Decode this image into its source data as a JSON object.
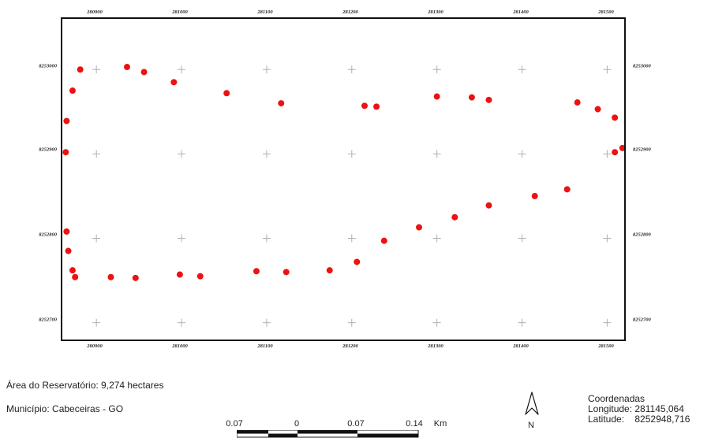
{
  "map": {
    "x_ticks": [
      "280900",
      "281000",
      "281100",
      "281200",
      "281300",
      "281400",
      "281500"
    ],
    "x_tick_values": [
      280900,
      281000,
      281100,
      281200,
      281300,
      281400,
      281500
    ],
    "y_ticks": [
      "8253000",
      "8252900",
      "8252800",
      "8252700"
    ],
    "y_tick_values": [
      8253000,
      8252900,
      8252800,
      8252700
    ],
    "x_range": [
      280860,
      281520
    ],
    "y_range": [
      8252680,
      8253060
    ],
    "grid_style": "crosses",
    "point_color": "#ee1111",
    "grid_color": "#b0b0b0",
    "points": [
      {
        "x": 280864,
        "y": 8252902
      },
      {
        "x": 280865,
        "y": 8252939
      },
      {
        "x": 280872,
        "y": 8252975
      },
      {
        "x": 280881,
        "y": 8253000
      },
      {
        "x": 280936,
        "y": 8253003
      },
      {
        "x": 280956,
        "y": 8252997
      },
      {
        "x": 280991,
        "y": 8252985
      },
      {
        "x": 281053,
        "y": 8252972
      },
      {
        "x": 281117,
        "y": 8252960
      },
      {
        "x": 281215,
        "y": 8252957
      },
      {
        "x": 281229,
        "y": 8252956
      },
      {
        "x": 281300,
        "y": 8252968
      },
      {
        "x": 281341,
        "y": 8252967
      },
      {
        "x": 281361,
        "y": 8252964
      },
      {
        "x": 281465,
        "y": 8252961
      },
      {
        "x": 281489,
        "y": 8252953
      },
      {
        "x": 281509,
        "y": 8252943
      },
      {
        "x": 281518,
        "y": 8252907
      },
      {
        "x": 281509,
        "y": 8252902
      },
      {
        "x": 281453,
        "y": 8252858
      },
      {
        "x": 281415,
        "y": 8252850
      },
      {
        "x": 281361,
        "y": 8252839
      },
      {
        "x": 281321,
        "y": 8252825
      },
      {
        "x": 281279,
        "y": 8252813
      },
      {
        "x": 281238,
        "y": 8252797
      },
      {
        "x": 281206,
        "y": 8252772
      },
      {
        "x": 281174,
        "y": 8252762
      },
      {
        "x": 281123,
        "y": 8252760
      },
      {
        "x": 281088,
        "y": 8252761
      },
      {
        "x": 281022,
        "y": 8252755
      },
      {
        "x": 280998,
        "y": 8252757
      },
      {
        "x": 280946,
        "y": 8252753
      },
      {
        "x": 280917,
        "y": 8252754
      },
      {
        "x": 280875,
        "y": 8252754
      },
      {
        "x": 280872,
        "y": 8252762
      },
      {
        "x": 280867,
        "y": 8252785
      },
      {
        "x": 280865,
        "y": 8252808
      }
    ]
  },
  "info": {
    "area": "Área do Reservatório: 9,274 hectares",
    "municipality": "Município: Cabeceiras - GO"
  },
  "scale_bar": {
    "labels": [
      "0.07",
      "0",
      "0.07",
      "0.14",
      "Km"
    ]
  },
  "north_arrow": {
    "label": "N"
  },
  "coordinates": {
    "title": "Coordenadas",
    "longitude": "Longitude: 281145,064",
    "latitude": "Latitude:    8252948,716"
  }
}
